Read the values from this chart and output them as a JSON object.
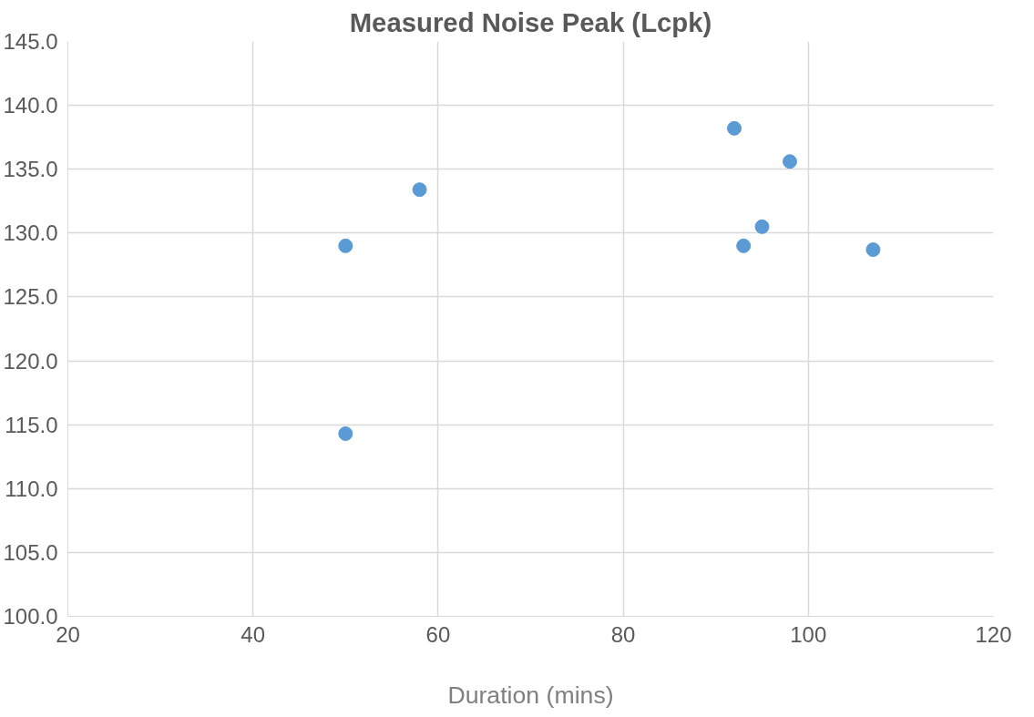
{
  "chart_data": {
    "type": "scatter",
    "title": "Measured Noise Peak (Lcpk)",
    "xlabel": "Duration (mins)",
    "x": [
      50,
      50,
      58,
      92,
      98,
      95,
      93,
      107
    ],
    "series": [
      {
        "color": "#5b9bd5",
        "values": [
          129.0,
          114.3,
          133.4,
          138.2,
          135.6,
          130.5,
          129.0,
          128.7
        ]
      }
    ],
    "xlim": [
      20,
      120
    ],
    "xticks": [
      20,
      40,
      60,
      80,
      100,
      120
    ],
    "ylim": [
      100,
      145
    ],
    "yticks": [
      {
        "value": 100,
        "label": "100.0"
      },
      {
        "value": 105,
        "label": "105.0"
      },
      {
        "value": 110,
        "label": "110.0"
      },
      {
        "value": 115,
        "label": "115.0"
      },
      {
        "value": 120,
        "label": "120.0"
      },
      {
        "value": 125,
        "label": "125.0"
      },
      {
        "value": 130,
        "label": "130.0"
      },
      {
        "value": 135,
        "label": "135.0"
      },
      {
        "value": 140,
        "label": "140.0"
      },
      {
        "value": 145,
        "label": "145.0"
      }
    ],
    "grid": true,
    "marker": "circle"
  }
}
